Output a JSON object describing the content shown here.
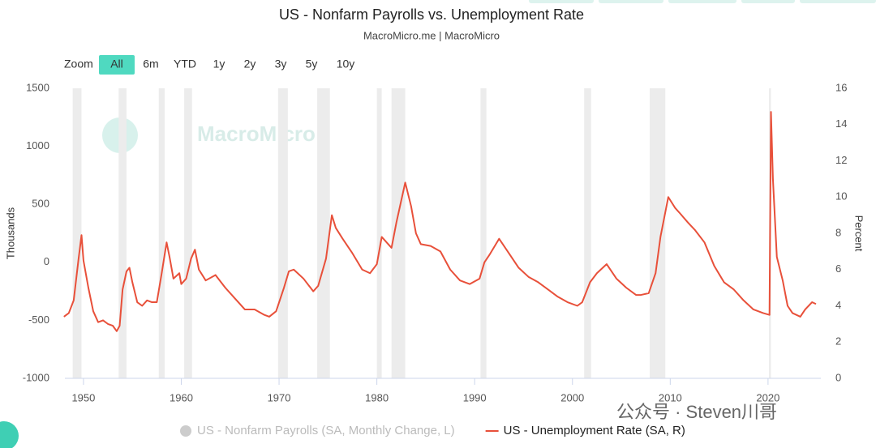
{
  "chart_data": {
    "type": "line",
    "title": "US - Nonfarm Payrolls vs. Unemployment Rate",
    "subtitle": "MacroMicro.me | MacroMicro",
    "watermark": "MacroMicro",
    "footer_watermark": "公众号 · Steven川哥",
    "range_selector": {
      "label": "Zoom",
      "buttons": [
        "All",
        "6m",
        "YTD",
        "1y",
        "2y",
        "3y",
        "5y",
        "10y"
      ],
      "active": "All",
      "active_color": "#4fd9c0"
    },
    "y_label": "Thousands",
    "y2_label": "Percent",
    "ylim": [
      -1000,
      1500
    ],
    "yticks": [
      -1000,
      -500,
      0,
      500,
      1000,
      1500
    ],
    "y2lim": [
      0,
      16
    ],
    "y2ticks": [
      0,
      2,
      4,
      6,
      8,
      10,
      12,
      14,
      16
    ],
    "xlim": [
      1948.1,
      2025.4
    ],
    "xticks": [
      1950,
      1960,
      1970,
      1980,
      1990,
      2000,
      2010,
      2020
    ],
    "grid": false,
    "shaded_ranges": [
      [
        1948.9,
        1949.8
      ],
      [
        1953.6,
        1954.4
      ],
      [
        1957.7,
        1958.3
      ],
      [
        1960.3,
        1961.1
      ],
      [
        1969.9,
        1970.9
      ],
      [
        1973.9,
        1975.2
      ],
      [
        1980.0,
        1980.5
      ],
      [
        1981.5,
        1982.9
      ],
      [
        1990.6,
        1991.2
      ],
      [
        2001.2,
        2001.9
      ],
      [
        2007.9,
        2009.5
      ],
      [
        2020.1,
        2020.3
      ]
    ],
    "shade_color": "#ececec",
    "hidden_series": [
      {
        "name": "US - Nonfarm Payrolls (SA, Monthly Change, L)",
        "color": "#cccccc"
      }
    ],
    "x": [
      1948.0,
      1948.5,
      1949.0,
      1949.5,
      1949.8,
      1950.0,
      1950.5,
      1951.0,
      1951.5,
      1952.0,
      1952.5,
      1953.0,
      1953.4,
      1953.7,
      1954.0,
      1954.4,
      1954.7,
      1955.0,
      1955.5,
      1956.0,
      1956.5,
      1957.0,
      1957.5,
      1958.0,
      1958.5,
      1958.8,
      1959.2,
      1959.8,
      1960.0,
      1960.5,
      1961.0,
      1961.4,
      1961.8,
      1962.5,
      1963.5,
      1964.5,
      1965.5,
      1966.5,
      1967.5,
      1968.5,
      1969.0,
      1969.7,
      1970.5,
      1971.0,
      1971.5,
      1972.5,
      1973.5,
      1974.0,
      1974.8,
      1975.4,
      1975.8,
      1976.5,
      1977.5,
      1978.5,
      1979.3,
      1980.0,
      1980.5,
      1981.0,
      1981.5,
      1982.0,
      1982.9,
      1983.5,
      1984.0,
      1984.5,
      1985.5,
      1986.5,
      1987.5,
      1988.5,
      1989.5,
      1990.5,
      1991.0,
      1991.5,
      1992.5,
      1993.5,
      1994.5,
      1995.5,
      1996.5,
      1997.5,
      1998.5,
      1999.5,
      2000.5,
      2001.0,
      2001.8,
      2002.5,
      2003.5,
      2004.5,
      2005.5,
      2006.5,
      2007.0,
      2007.8,
      2008.5,
      2009.0,
      2009.8,
      2010.5,
      2011.0,
      2011.8,
      2012.5,
      2013.5,
      2014.5,
      2015.5,
      2016.5,
      2017.5,
      2018.5,
      2019.5,
      2020.15,
      2020.3,
      2020.5,
      2020.9,
      2021.5,
      2022.0,
      2022.5,
      2023.3,
      2023.8,
      2024.5,
      2024.9
    ],
    "series": [
      {
        "name": "US - Unemployment Rate (SA, R)",
        "color": "#e8503a",
        "axis": "y2",
        "values": [
          3.4,
          3.6,
          4.3,
          6.6,
          7.9,
          6.5,
          5.0,
          3.7,
          3.1,
          3.2,
          3.0,
          2.9,
          2.6,
          2.9,
          4.9,
          5.9,
          6.1,
          5.3,
          4.2,
          4.0,
          4.3,
          4.2,
          4.2,
          5.8,
          7.5,
          6.7,
          5.5,
          5.8,
          5.2,
          5.5,
          6.6,
          7.1,
          6.0,
          5.4,
          5.7,
          5.0,
          4.4,
          3.8,
          3.8,
          3.5,
          3.4,
          3.7,
          5.0,
          5.9,
          6.0,
          5.5,
          4.8,
          5.1,
          6.6,
          9.0,
          8.3,
          7.7,
          6.9,
          6.0,
          5.8,
          6.3,
          7.8,
          7.5,
          7.2,
          8.6,
          10.8,
          9.5,
          8.0,
          7.4,
          7.3,
          7.0,
          6.0,
          5.4,
          5.2,
          5.5,
          6.4,
          6.8,
          7.7,
          6.9,
          6.1,
          5.6,
          5.3,
          4.9,
          4.5,
          4.2,
          4.0,
          4.2,
          5.3,
          5.8,
          6.3,
          5.5,
          5.0,
          4.6,
          4.6,
          4.7,
          5.8,
          7.8,
          10.0,
          9.4,
          9.1,
          8.6,
          8.2,
          7.5,
          6.2,
          5.3,
          4.9,
          4.3,
          3.8,
          3.6,
          3.5,
          14.7,
          11.0,
          6.7,
          5.4,
          4.0,
          3.6,
          3.4,
          3.8,
          4.2,
          4.1
        ]
      }
    ]
  }
}
